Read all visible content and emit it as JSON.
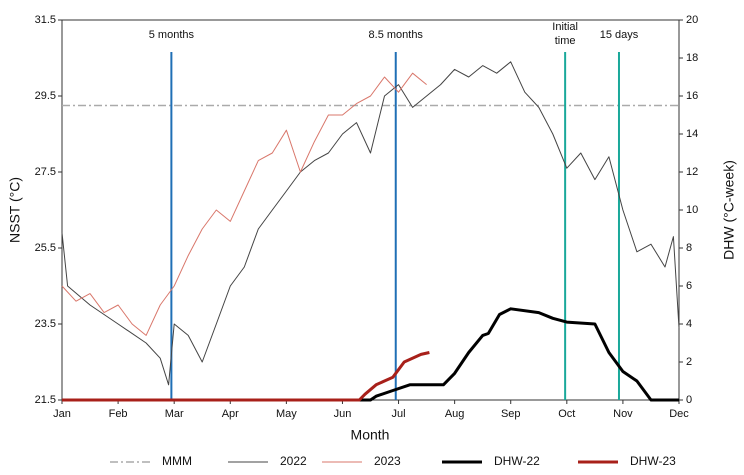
{
  "chart_data": {
    "type": "line",
    "x_label": "Month",
    "y_label": "NSST (°C)",
    "y2_label": "DHW (°C-week)",
    "xlim": [
      0,
      11
    ],
    "xticks": [
      {
        "value": 0,
        "label": "Jan"
      },
      {
        "value": 1,
        "label": "Feb"
      },
      {
        "value": 2,
        "label": "Mar"
      },
      {
        "value": 3,
        "label": "Apr"
      },
      {
        "value": 4,
        "label": "May"
      },
      {
        "value": 5,
        "label": "Jun"
      },
      {
        "value": 6,
        "label": "Jul"
      },
      {
        "value": 7,
        "label": "Aug"
      },
      {
        "value": 8,
        "label": "Sep"
      },
      {
        "value": 9,
        "label": "Oct"
      },
      {
        "value": 10,
        "label": "Nov"
      },
      {
        "value": 11,
        "label": "Dec"
      }
    ],
    "ylim": [
      21.5,
      31.5
    ],
    "yticks": [
      21.5,
      23.5,
      25.5,
      27.5,
      29.5,
      31.5
    ],
    "y2lim": [
      0,
      20
    ],
    "y2ticks": [
      0,
      2,
      4,
      6,
      8,
      10,
      12,
      14,
      16,
      18,
      20
    ],
    "reference_lines": [
      {
        "name": "MMM",
        "value": 29.25,
        "color": "#aaaaaa"
      }
    ],
    "annotations": [
      {
        "label": "5 months",
        "x": 1.95,
        "color": "#1f6fb5"
      },
      {
        "label": "8.5 months",
        "x": 5.95,
        "color": "#1f6fb5"
      },
      {
        "label": "Initial time",
        "x": 8.97,
        "color": "#1aa89a"
      },
      {
        "label": "15 days",
        "x": 9.93,
        "color": "#1aa89a"
      }
    ],
    "series": [
      {
        "name": "2022",
        "color": "#444444",
        "width": 1,
        "x": [
          0,
          0.1,
          0.5,
          1.0,
          1.5,
          1.75,
          1.9,
          2.0,
          2.25,
          2.5,
          2.75,
          3.0,
          3.25,
          3.5,
          3.75,
          4.0,
          4.25,
          4.5,
          4.75,
          5.0,
          5.25,
          5.5,
          5.75,
          6.0,
          6.25,
          6.5,
          6.75,
          7.0,
          7.25,
          7.5,
          7.75,
          8.0,
          8.25,
          8.5,
          8.75,
          9.0,
          9.25,
          9.5,
          9.75,
          10.0,
          10.25,
          10.5,
          10.75,
          10.9,
          11.0
        ],
        "values": [
          25.9,
          24.5,
          24.0,
          23.5,
          23.0,
          22.6,
          21.9,
          23.5,
          23.2,
          22.5,
          23.5,
          24.5,
          25.0,
          26.0,
          26.5,
          27.0,
          27.5,
          27.8,
          28.0,
          28.5,
          28.8,
          28.0,
          29.5,
          29.8,
          29.2,
          29.5,
          29.8,
          30.2,
          30.0,
          30.3,
          30.1,
          30.4,
          29.6,
          29.2,
          28.5,
          27.6,
          28.0,
          27.3,
          27.9,
          26.5,
          25.4,
          25.6,
          25.0,
          25.8,
          23.4
        ]
      },
      {
        "name": "2023",
        "color": "#d9776b",
        "width": 1,
        "x": [
          0,
          0.25,
          0.5,
          0.75,
          1.0,
          1.25,
          1.5,
          1.75,
          2.0,
          2.25,
          2.5,
          2.75,
          3.0,
          3.25,
          3.5,
          3.75,
          4.0,
          4.25,
          4.5,
          4.75,
          5.0,
          5.25,
          5.5,
          5.75,
          6.0,
          6.25,
          6.5
        ],
        "values": [
          24.5,
          24.1,
          24.3,
          23.8,
          24.0,
          23.5,
          23.2,
          24.0,
          24.5,
          25.3,
          26.0,
          26.5,
          26.2,
          27.0,
          27.8,
          28.0,
          28.6,
          27.5,
          28.3,
          29.0,
          29.0,
          29.3,
          29.5,
          30.0,
          29.6,
          30.1,
          29.8
        ]
      },
      {
        "name": "DHW-22",
        "color": "#000000",
        "width": 3,
        "axis": "y2",
        "x": [
          0,
          5.5,
          5.6,
          5.9,
          6.2,
          6.8,
          7.0,
          7.25,
          7.5,
          7.6,
          7.8,
          8.0,
          8.5,
          8.75,
          9.0,
          9.5,
          9.75,
          10.0,
          10.25,
          10.5,
          11.0
        ],
        "values": [
          0,
          0,
          0.2,
          0.5,
          0.8,
          0.8,
          1.4,
          2.5,
          3.4,
          3.5,
          4.5,
          4.8,
          4.6,
          4.3,
          4.1,
          4.0,
          2.5,
          1.5,
          1.0,
          0,
          0
        ]
      },
      {
        "name": "DHW-23",
        "color": "#a8201a",
        "width": 3,
        "axis": "y2",
        "x": [
          0,
          5.3,
          5.4,
          5.6,
          5.9,
          6.1,
          6.4,
          6.55
        ],
        "values": [
          0,
          0,
          0.3,
          0.8,
          1.2,
          2.0,
          2.4,
          2.5
        ]
      }
    ]
  }
}
